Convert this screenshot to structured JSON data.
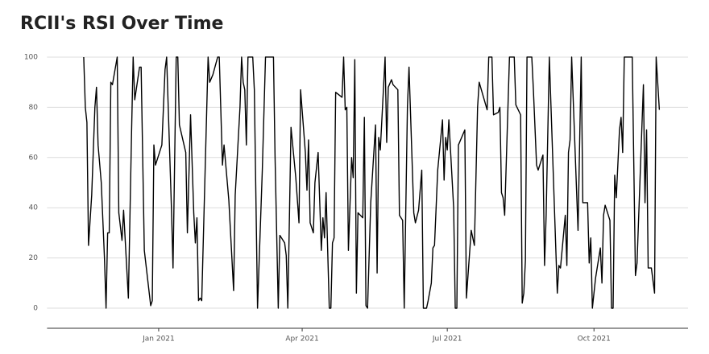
{
  "chart_data": {
    "type": "line",
    "title": "RCII's RSI Over Time",
    "x": [
      -47,
      -46,
      -45,
      -44,
      -42,
      -40,
      -39,
      -38,
      -36,
      -34,
      -33,
      -32,
      -31,
      -30,
      -29,
      -26,
      -25,
      -23,
      -22,
      -19,
      -17,
      -16,
      -15,
      -12,
      -11,
      -9,
      -5,
      -4,
      -3,
      -2,
      2,
      4,
      5,
      8,
      9,
      11,
      12,
      13,
      17,
      18,
      20,
      22,
      23,
      24,
      25,
      26,
      27,
      31,
      32,
      34,
      37,
      38,
      40,
      41,
      44,
      47,
      48,
      51,
      52,
      53,
      54,
      55,
      56,
      59,
      60,
      62,
      65,
      67,
      72,
      73,
      75,
      76,
      79,
      80,
      81,
      83,
      86,
      88,
      89,
      92,
      93,
      94,
      95,
      97,
      98,
      100,
      102,
      103,
      104,
      105,
      107,
      108,
      109,
      110,
      111,
      115,
      116,
      117,
      118,
      119,
      121,
      122,
      123,
      124,
      125,
      128,
      129,
      130,
      131,
      133,
      136,
      137,
      138,
      139,
      142,
      143,
      144,
      146,
      147,
      150,
      151,
      153,
      154,
      156,
      157,
      160,
      161,
      163,
      165,
      166,
      168,
      169,
      171,
      172,
      173,
      175,
      178,
      179,
      180,
      181,
      182,
      185,
      186,
      187,
      188,
      192,
      193,
      196,
      198,
      200,
      201,
      206,
      207,
      209,
      210,
      213,
      214,
      215,
      216,
      217,
      220,
      223,
      224,
      227,
      228,
      229,
      230,
      231,
      234,
      235,
      237,
      238,
      241,
      242,
      243,
      245,
      250,
      251,
      252,
      255,
      256,
      257,
      258,
      259,
      263,
      265,
      266,
      269,
      270,
      271,
      272,
      274,
      277,
      278,
      279,
      280,
      283,
      284,
      285,
      286,
      287,
      289,
      290,
      291,
      292,
      297,
      299,
      300,
      304,
      305,
      306,
      307,
      309,
      311,
      312,
      314
    ],
    "values": [
      100,
      80,
      74,
      25,
      45,
      80,
      88,
      65,
      50,
      20,
      0,
      30,
      30,
      90,
      89,
      100,
      38,
      27,
      39,
      4,
      70,
      100,
      83,
      96,
      96,
      23,
      1,
      3,
      65,
      57,
      65,
      95,
      100,
      40,
      16,
      100,
      100,
      73,
      62,
      30,
      77,
      38,
      26,
      36,
      3,
      4,
      3,
      100,
      90,
      93,
      100,
      100,
      57,
      65,
      43,
      7,
      45,
      80,
      100,
      90,
      87,
      65,
      100,
      100,
      87,
      0,
      55,
      100,
      100,
      60,
      0,
      29,
      26,
      21,
      0,
      72,
      52,
      34,
      87,
      62,
      47,
      67,
      34,
      30,
      50,
      62,
      23,
      36,
      28,
      46,
      0,
      0,
      26,
      28,
      86,
      84,
      100,
      79,
      80,
      23,
      60,
      52,
      99,
      6,
      38,
      36,
      76,
      1,
      0,
      42,
      73,
      14,
      68,
      63,
      100,
      66,
      88,
      91,
      89,
      87,
      37,
      35,
      0,
      80,
      96,
      38,
      34,
      39,
      55,
      0,
      0,
      3,
      10,
      24,
      25,
      55,
      75,
      51,
      68,
      63,
      75,
      40,
      0,
      0,
      65,
      71,
      4,
      31,
      25,
      80,
      90,
      79,
      100,
      100,
      77,
      78,
      80,
      46,
      44,
      37,
      100,
      100,
      81,
      77,
      2,
      6,
      19,
      100,
      100,
      87,
      57,
      55,
      61,
      17,
      37,
      100,
      6,
      17,
      16,
      37,
      17,
      62,
      67,
      100,
      31,
      100,
      42,
      42,
      18,
      28,
      0,
      12,
      24,
      10,
      37,
      41,
      35,
      0,
      0,
      53,
      44,
      71,
      76,
      62,
      100,
      100,
      13,
      18,
      89,
      42,
      71,
      16,
      16,
      6,
      100,
      79
    ],
    "color": "#000000",
    "xlim": [
      -70,
      332
    ],
    "xticks": [
      {
        "value": 0,
        "label": "Jan 2021"
      },
      {
        "value": 90,
        "label": "Apr 2021"
      },
      {
        "value": 181,
        "label": "Jul 2021"
      },
      {
        "value": 273,
        "label": "Oct 2021"
      }
    ],
    "ylim": [
      -8,
      104
    ],
    "yticks": [
      0,
      20,
      40,
      60,
      80,
      100
    ],
    "grid": true
  }
}
